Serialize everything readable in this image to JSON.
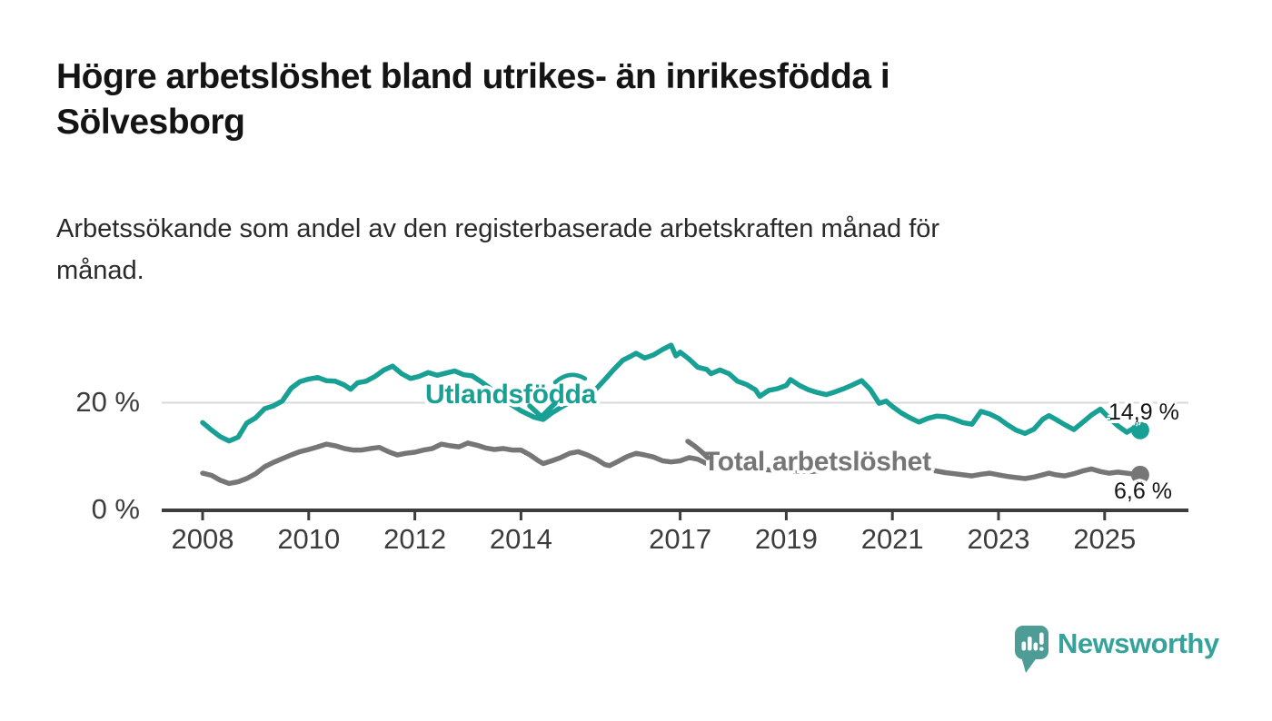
{
  "header": {
    "title": "Högre arbetslöshet bland utrikes- än inrikesfödda i\nSölvesborg",
    "subtitle": "Arbetssökande som andel av den registerbaserade arbetskraften månad för\nmånad."
  },
  "chart_data": {
    "type": "line",
    "title": "Högre arbetslöshet bland utrikes- än inrikesfödda i Sölvesborg",
    "subtitle": "Arbetssökande som andel av den registerbaserade arbetskraften månad för månad.",
    "unit": "%",
    "ylim": [
      0,
      33
    ],
    "xlim": [
      2007.2,
      2026.6
    ],
    "grid": "single horizontal gridline at 20 %",
    "grid_color": "#d9d9d9",
    "axis_color": "#3d3d3d",
    "y_gridlines": [
      20
    ],
    "y_ticks": [
      {
        "value": 0,
        "label": "0 %"
      },
      {
        "value": 20,
        "label": "20 %"
      }
    ],
    "x_ticks": [
      {
        "year": 2008,
        "label": "2008"
      },
      {
        "year": 2010,
        "label": "2010"
      },
      {
        "year": 2012,
        "label": "2012"
      },
      {
        "year": 2014,
        "label": "2014"
      },
      {
        "year": 2017,
        "label": "2017"
      },
      {
        "year": 2019,
        "label": "2019"
      },
      {
        "year": 2021,
        "label": "2021"
      },
      {
        "year": 2023,
        "label": "2023"
      },
      {
        "year": 2025,
        "label": "2025"
      }
    ],
    "series": [
      {
        "name": "Utlandsfödda",
        "color": "#18a094",
        "end_label": "14,9 %",
        "end_value": 14.9,
        "points": [
          [
            2008.0,
            16.3
          ],
          [
            2008.17,
            14.9
          ],
          [
            2008.33,
            13.7
          ],
          [
            2008.5,
            12.9
          ],
          [
            2008.67,
            13.6
          ],
          [
            2008.83,
            16.2
          ],
          [
            2009.0,
            17.2
          ],
          [
            2009.17,
            18.9
          ],
          [
            2009.33,
            19.4
          ],
          [
            2009.5,
            20.3
          ],
          [
            2009.67,
            22.7
          ],
          [
            2009.83,
            23.9
          ],
          [
            2010.0,
            24.4
          ],
          [
            2010.17,
            24.7
          ],
          [
            2010.33,
            24.1
          ],
          [
            2010.5,
            24.0
          ],
          [
            2010.67,
            23.3
          ],
          [
            2010.79,
            22.5
          ],
          [
            2010.92,
            23.7
          ],
          [
            2011.08,
            24.0
          ],
          [
            2011.25,
            24.9
          ],
          [
            2011.42,
            26.1
          ],
          [
            2011.58,
            26.8
          ],
          [
            2011.75,
            25.4
          ],
          [
            2011.92,
            24.5
          ],
          [
            2012.08,
            24.9
          ],
          [
            2012.25,
            25.6
          ],
          [
            2012.42,
            25.1
          ],
          [
            2012.58,
            25.5
          ],
          [
            2012.75,
            25.9
          ],
          [
            2012.92,
            25.2
          ],
          [
            2013.08,
            25.0
          ],
          [
            2013.25,
            23.9
          ],
          [
            2013.5,
            22.1
          ],
          [
            2013.75,
            20.1
          ],
          [
            2014.0,
            18.5
          ],
          [
            2014.25,
            17.3
          ],
          [
            2014.42,
            16.9
          ],
          [
            2014.58,
            18.1
          ],
          [
            2014.83,
            19.6
          ],
          [
            2015.08,
            20.5
          ],
          [
            2015.25,
            21.4
          ],
          [
            2015.42,
            22.6
          ],
          [
            2015.58,
            24.3
          ],
          [
            2015.75,
            26.2
          ],
          [
            2015.92,
            27.9
          ],
          [
            2016.08,
            28.7
          ],
          [
            2016.17,
            29.2
          ],
          [
            2016.33,
            28.3
          ],
          [
            2016.5,
            28.9
          ],
          [
            2016.67,
            29.9
          ],
          [
            2016.83,
            30.7
          ],
          [
            2016.92,
            28.7
          ],
          [
            2017.0,
            29.4
          ],
          [
            2017.17,
            28.1
          ],
          [
            2017.33,
            26.6
          ],
          [
            2017.5,
            26.2
          ],
          [
            2017.58,
            25.4
          ],
          [
            2017.75,
            26.1
          ],
          [
            2017.92,
            25.4
          ],
          [
            2018.08,
            24.0
          ],
          [
            2018.25,
            23.4
          ],
          [
            2018.42,
            22.4
          ],
          [
            2018.5,
            21.2
          ],
          [
            2018.67,
            22.3
          ],
          [
            2018.83,
            22.6
          ],
          [
            2019.0,
            23.2
          ],
          [
            2019.08,
            24.3
          ],
          [
            2019.25,
            23.2
          ],
          [
            2019.42,
            22.4
          ],
          [
            2019.58,
            21.9
          ],
          [
            2019.75,
            21.5
          ],
          [
            2019.92,
            22.0
          ],
          [
            2020.08,
            22.6
          ],
          [
            2020.25,
            23.3
          ],
          [
            2020.42,
            24.1
          ],
          [
            2020.58,
            22.5
          ],
          [
            2020.75,
            19.9
          ],
          [
            2020.88,
            20.3
          ],
          [
            2021.0,
            19.3
          ],
          [
            2021.17,
            18.1
          ],
          [
            2021.33,
            17.2
          ],
          [
            2021.5,
            16.4
          ],
          [
            2021.67,
            17.1
          ],
          [
            2021.83,
            17.5
          ],
          [
            2022.0,
            17.4
          ],
          [
            2022.17,
            16.9
          ],
          [
            2022.33,
            16.3
          ],
          [
            2022.5,
            16.0
          ],
          [
            2022.67,
            18.4
          ],
          [
            2022.83,
            17.9
          ],
          [
            2023.0,
            17.1
          ],
          [
            2023.17,
            15.9
          ],
          [
            2023.33,
            14.9
          ],
          [
            2023.5,
            14.3
          ],
          [
            2023.67,
            15.1
          ],
          [
            2023.83,
            16.9
          ],
          [
            2023.95,
            17.6
          ],
          [
            2024.08,
            16.9
          ],
          [
            2024.25,
            15.9
          ],
          [
            2024.42,
            15.0
          ],
          [
            2024.58,
            16.3
          ],
          [
            2024.75,
            17.7
          ],
          [
            2024.92,
            18.8
          ],
          [
            2025.08,
            17.2
          ],
          [
            2025.25,
            15.7
          ],
          [
            2025.42,
            14.5
          ],
          [
            2025.55,
            15.3
          ],
          [
            2025.67,
            14.9
          ]
        ]
      },
      {
        "name": "Total arbetslöshet",
        "color": "#767676",
        "end_label": "6,6 %",
        "end_value": 6.6,
        "points": [
          [
            2008.0,
            6.9
          ],
          [
            2008.17,
            6.5
          ],
          [
            2008.33,
            5.6
          ],
          [
            2008.5,
            5.0
          ],
          [
            2008.67,
            5.3
          ],
          [
            2008.83,
            5.9
          ],
          [
            2009.0,
            6.8
          ],
          [
            2009.17,
            8.1
          ],
          [
            2009.33,
            8.9
          ],
          [
            2009.5,
            9.6
          ],
          [
            2009.67,
            10.3
          ],
          [
            2009.83,
            10.9
          ],
          [
            2010.0,
            11.3
          ],
          [
            2010.17,
            11.8
          ],
          [
            2010.33,
            12.3
          ],
          [
            2010.5,
            12.0
          ],
          [
            2010.67,
            11.5
          ],
          [
            2010.83,
            11.2
          ],
          [
            2011.0,
            11.2
          ],
          [
            2011.17,
            11.5
          ],
          [
            2011.33,
            11.7
          ],
          [
            2011.5,
            10.9
          ],
          [
            2011.67,
            10.3
          ],
          [
            2011.83,
            10.6
          ],
          [
            2012.0,
            10.8
          ],
          [
            2012.17,
            11.2
          ],
          [
            2012.33,
            11.5
          ],
          [
            2012.5,
            12.3
          ],
          [
            2012.67,
            12.0
          ],
          [
            2012.83,
            11.8
          ],
          [
            2013.0,
            12.5
          ],
          [
            2013.17,
            12.1
          ],
          [
            2013.33,
            11.6
          ],
          [
            2013.5,
            11.3
          ],
          [
            2013.67,
            11.5
          ],
          [
            2013.83,
            11.2
          ],
          [
            2014.0,
            11.2
          ],
          [
            2014.17,
            10.3
          ],
          [
            2014.33,
            9.2
          ],
          [
            2014.42,
            8.7
          ],
          [
            2014.58,
            9.2
          ],
          [
            2014.75,
            9.8
          ],
          [
            2014.92,
            10.6
          ],
          [
            2015.08,
            10.9
          ],
          [
            2015.25,
            10.3
          ],
          [
            2015.42,
            9.5
          ],
          [
            2015.58,
            8.5
          ],
          [
            2015.67,
            8.3
          ],
          [
            2015.83,
            9.1
          ],
          [
            2016.0,
            10.0
          ],
          [
            2016.17,
            10.6
          ],
          [
            2016.33,
            10.3
          ],
          [
            2016.5,
            9.9
          ],
          [
            2016.67,
            9.2
          ],
          [
            2016.83,
            9.0
          ],
          [
            2017.0,
            9.2
          ],
          [
            2017.17,
            9.8
          ],
          [
            2017.33,
            9.5
          ],
          [
            2017.5,
            8.7
          ],
          [
            2017.67,
            8.2
          ],
          [
            2017.83,
            8.3
          ],
          [
            2018.0,
            8.0
          ],
          [
            2018.5,
            7.6
          ],
          [
            2019.0,
            7.4
          ],
          [
            2019.5,
            7.2
          ],
          [
            2020.0,
            8.1
          ],
          [
            2020.33,
            9.6
          ],
          [
            2020.67,
            9.4
          ],
          [
            2021.0,
            8.9
          ],
          [
            2021.33,
            8.2
          ],
          [
            2021.67,
            7.6
          ],
          [
            2022.0,
            7.0
          ],
          [
            2022.17,
            6.8
          ],
          [
            2022.33,
            6.6
          ],
          [
            2022.5,
            6.4
          ],
          [
            2022.67,
            6.7
          ],
          [
            2022.83,
            6.9
          ],
          [
            2023.0,
            6.6
          ],
          [
            2023.17,
            6.3
          ],
          [
            2023.33,
            6.1
          ],
          [
            2023.5,
            5.9
          ],
          [
            2023.67,
            6.2
          ],
          [
            2023.83,
            6.6
          ],
          [
            2023.95,
            6.9
          ],
          [
            2024.08,
            6.6
          ],
          [
            2024.25,
            6.4
          ],
          [
            2024.42,
            6.8
          ],
          [
            2024.58,
            7.3
          ],
          [
            2024.75,
            7.7
          ],
          [
            2024.92,
            7.2
          ],
          [
            2025.08,
            6.9
          ],
          [
            2025.25,
            7.1
          ],
          [
            2025.42,
            6.9
          ],
          [
            2025.58,
            6.7
          ],
          [
            2025.67,
            6.6
          ]
        ]
      }
    ],
    "legend_position": "inline labels next to lines"
  },
  "footer": {
    "brand": "Newsworthy",
    "brand_text_color": "#33a39b",
    "brand_icon_color": "#4e9c96"
  }
}
